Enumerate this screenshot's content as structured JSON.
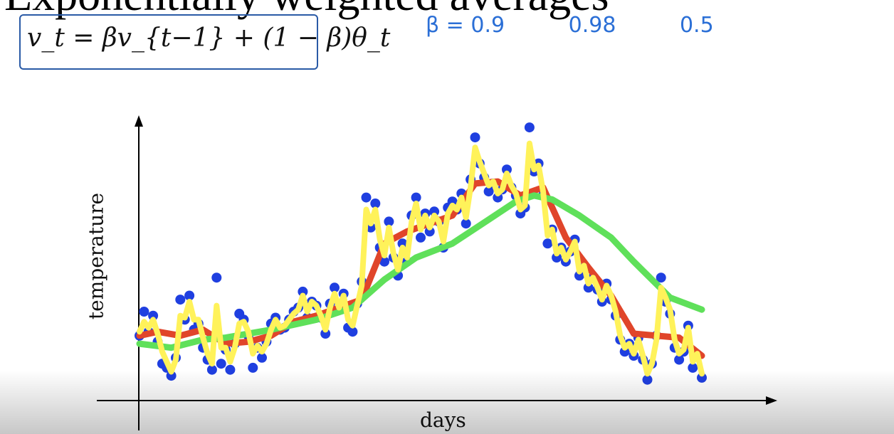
{
  "slide": {
    "title_partial": "Exponentially weighted averages",
    "formula": "v_t = βv_{t−1} + (1 − β)θ_t",
    "handwritten_betas": [
      "β = 0.9",
      "0.98",
      "0.5"
    ]
  },
  "chart_data": {
    "type": "line",
    "xlabel": "days",
    "ylabel": "temperature",
    "grid": false,
    "x_ticks": [],
    "y_ticks": [],
    "points": [
      [
        1,
        4.6
      ],
      [
        2,
        5.8
      ],
      [
        3,
        4.8
      ],
      [
        4,
        5.6
      ],
      [
        5,
        4.3
      ],
      [
        6,
        3.2
      ],
      [
        7,
        3.0
      ],
      [
        8,
        2.6
      ],
      [
        9,
        3.5
      ],
      [
        10,
        6.4
      ],
      [
        11,
        5.4
      ],
      [
        12,
        6.6
      ],
      [
        13,
        4.9
      ],
      [
        14,
        5.2
      ],
      [
        15,
        4.0
      ],
      [
        16,
        3.4
      ],
      [
        17,
        2.9
      ],
      [
        18,
        7.5
      ],
      [
        19,
        3.2
      ],
      [
        20,
        3.9
      ],
      [
        21,
        2.9
      ],
      [
        22,
        4.2
      ],
      [
        23,
        5.7
      ],
      [
        24,
        5.4
      ],
      [
        25,
        4.6
      ],
      [
        26,
        3.0
      ],
      [
        27,
        4.0
      ],
      [
        28,
        3.5
      ],
      [
        29,
        4.3
      ],
      [
        30,
        5.2
      ],
      [
        31,
        5.5
      ],
      [
        32,
        4.9
      ],
      [
        33,
        5.0
      ],
      [
        34,
        5.4
      ],
      [
        35,
        5.8
      ],
      [
        36,
        6.0
      ],
      [
        37,
        6.8
      ],
      [
        38,
        5.5
      ],
      [
        39,
        6.3
      ],
      [
        40,
        6.1
      ],
      [
        41,
        5.5
      ],
      [
        42,
        4.7
      ],
      [
        43,
        6.2
      ],
      [
        44,
        7.0
      ],
      [
        45,
        5.9
      ],
      [
        46,
        6.7
      ],
      [
        47,
        5.0
      ],
      [
        48,
        4.8
      ],
      [
        49,
        6.2
      ],
      [
        50,
        7.3
      ],
      [
        51,
        11.5
      ],
      [
        52,
        10.0
      ],
      [
        53,
        11.2
      ],
      [
        54,
        9.0
      ],
      [
        55,
        8.3
      ],
      [
        56,
        10.3
      ],
      [
        57,
        8.5
      ],
      [
        58,
        7.6
      ],
      [
        59,
        9.2
      ],
      [
        60,
        8.3
      ],
      [
        61,
        10.6
      ],
      [
        62,
        11.5
      ],
      [
        63,
        9.5
      ],
      [
        64,
        10.7
      ],
      [
        65,
        9.8
      ],
      [
        66,
        10.8
      ],
      [
        67,
        10.3
      ],
      [
        68,
        9.0
      ],
      [
        69,
        11.0
      ],
      [
        70,
        11.3
      ],
      [
        71,
        10.9
      ],
      [
        72,
        11.7
      ],
      [
        73,
        10.2
      ],
      [
        74,
        12.4
      ],
      [
        75,
        14.5
      ],
      [
        76,
        13.2
      ],
      [
        77,
        12.5
      ],
      [
        78,
        11.8
      ],
      [
        79,
        12.2
      ],
      [
        80,
        11.5
      ],
      [
        81,
        11.9
      ],
      [
        82,
        12.9
      ],
      [
        83,
        12.0
      ],
      [
        84,
        11.6
      ],
      [
        85,
        10.7
      ],
      [
        86,
        11.0
      ],
      [
        87,
        15.0
      ],
      [
        88,
        12.8
      ],
      [
        89,
        13.2
      ],
      [
        90,
        11.6
      ],
      [
        91,
        9.2
      ],
      [
        92,
        9.9
      ],
      [
        93,
        8.5
      ],
      [
        94,
        9.0
      ],
      [
        95,
        8.3
      ],
      [
        96,
        8.8
      ],
      [
        97,
        9.4
      ],
      [
        98,
        7.6
      ],
      [
        99,
        8.0
      ],
      [
        100,
        7.0
      ],
      [
        101,
        7.5
      ],
      [
        102,
        6.9
      ],
      [
        103,
        6.3
      ],
      [
        104,
        7.2
      ],
      [
        105,
        6.4
      ],
      [
        106,
        5.6
      ],
      [
        107,
        4.4
      ],
      [
        108,
        3.8
      ],
      [
        109,
        4.2
      ],
      [
        110,
        3.6
      ],
      [
        111,
        4.5
      ],
      [
        112,
        3.4
      ],
      [
        113,
        2.4
      ],
      [
        114,
        3.2
      ],
      [
        115,
        4.6
      ],
      [
        116,
        7.5
      ],
      [
        117,
        6.3
      ],
      [
        118,
        5.7
      ],
      [
        119,
        4.0
      ],
      [
        120,
        3.4
      ],
      [
        121,
        3.8
      ],
      [
        122,
        5.1
      ],
      [
        123,
        3.0
      ],
      [
        124,
        3.6
      ],
      [
        125,
        2.5
      ]
    ],
    "series": [
      {
        "name": "β = 0.9",
        "color": "#e0452a",
        "x": [
          1,
          5,
          10,
          15,
          20,
          25,
          30,
          35,
          40,
          45,
          50,
          55,
          60,
          65,
          70,
          75,
          80,
          85,
          90,
          95,
          100,
          105,
          110,
          115,
          120,
          125
        ],
        "values": [
          4.6,
          4.8,
          4.6,
          4.9,
          4.2,
          4.3,
          4.6,
          5.3,
          5.6,
          6.0,
          6.4,
          9.2,
          9.8,
          10.2,
          10.6,
          12.2,
          12.3,
          11.6,
          12.0,
          9.5,
          8.0,
          6.6,
          4.7,
          4.6,
          4.5,
          3.6
        ]
      },
      {
        "name": "β = 0.98",
        "color": "#5fe05a",
        "x": [
          1,
          8,
          15,
          20,
          30,
          40,
          48,
          55,
          62,
          70,
          78,
          84,
          88,
          92,
          98,
          105,
          110,
          118,
          125
        ],
        "values": [
          4.2,
          4.0,
          4.4,
          4.5,
          4.9,
          5.4,
          6.0,
          7.4,
          8.5,
          9.2,
          10.4,
          11.3,
          11.6,
          11.4,
          10.6,
          9.5,
          8.3,
          6.5,
          5.9
        ]
      },
      {
        "name": "β = 0.5",
        "color": "#fff25a",
        "x": [
          1,
          2,
          3,
          4,
          5,
          6,
          7,
          8,
          9,
          10,
          11,
          12,
          13,
          14,
          15,
          16,
          17,
          18,
          19,
          20,
          21,
          22,
          23,
          24,
          25,
          26,
          27,
          28,
          29,
          30,
          31,
          32,
          33,
          34,
          35,
          36,
          37,
          38,
          39,
          40,
          41,
          42,
          43,
          44,
          45,
          46,
          47,
          48,
          49,
          50,
          51,
          52,
          53,
          54,
          55,
          56,
          57,
          58,
          59,
          60,
          61,
          62,
          63,
          64,
          65,
          66,
          67,
          68,
          69,
          70,
          71,
          72,
          73,
          74,
          75,
          76,
          77,
          78,
          79,
          80,
          81,
          82,
          83,
          84,
          85,
          86,
          87,
          88,
          89,
          90,
          91,
          92,
          93,
          94,
          95,
          96,
          97,
          98,
          99,
          100,
          101,
          102,
          103,
          104,
          105,
          106,
          107,
          108,
          109,
          110,
          111,
          112,
          113,
          114,
          115,
          116,
          117,
          118,
          119,
          120,
          121,
          122,
          123,
          124,
          125
        ],
        "values": [
          4.8,
          5.3,
          5.0,
          5.4,
          4.7,
          3.8,
          3.3,
          2.8,
          3.4,
          5.6,
          5.5,
          6.3,
          5.4,
          5.4,
          4.5,
          3.7,
          3.2,
          6.1,
          4.0,
          4.0,
          3.3,
          4.0,
          5.2,
          5.3,
          4.8,
          3.7,
          4.1,
          3.8,
          4.2,
          4.9,
          5.4,
          5.0,
          5.1,
          5.4,
          5.7,
          5.9,
          6.6,
          5.8,
          6.3,
          6.1,
          5.6,
          4.9,
          6.0,
          6.7,
          6.0,
          6.6,
          5.4,
          5.1,
          6.1,
          7.1,
          10.9,
          10.2,
          10.9,
          9.4,
          8.6,
          10.0,
          8.7,
          7.9,
          9.0,
          8.5,
          10.3,
          11.2,
          9.9,
          10.6,
          10.0,
          10.6,
          10.3,
          9.3,
          10.7,
          11.1,
          10.9,
          11.5,
          10.5,
          12.0,
          14.0,
          13.3,
          12.7,
          12.1,
          12.3,
          11.7,
          11.9,
          12.7,
          12.1,
          11.7,
          10.9,
          11.1,
          14.2,
          12.9,
          13.1,
          11.8,
          9.6,
          9.9,
          8.7,
          9.0,
          8.4,
          8.8,
          9.3,
          7.8,
          8.1,
          7.2,
          7.5,
          7.0,
          6.4,
          7.1,
          6.6,
          5.8,
          4.6,
          4.0,
          4.2,
          3.7,
          4.4,
          3.6,
          2.7,
          3.2,
          4.4,
          7.0,
          6.5,
          5.9,
          4.4,
          3.7,
          3.9,
          5.0,
          3.3,
          3.7,
          2.7
        ]
      }
    ]
  }
}
